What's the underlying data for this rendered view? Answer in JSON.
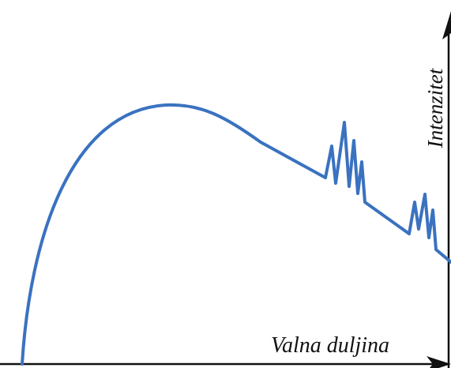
{
  "axes": {
    "y_label": "Intenzitet",
    "x_label": "Valna duljina"
  }
}
